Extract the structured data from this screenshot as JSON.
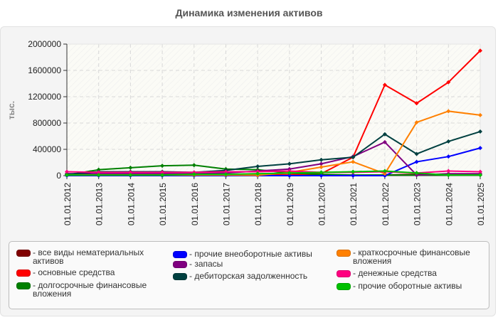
{
  "title": "Динамика изменения активов",
  "chart_data": {
    "type": "line",
    "title": "Динамика изменения активов",
    "xlabel": "",
    "ylabel": "тыс.",
    "ylim": [
      0,
      2000000
    ],
    "yticks": [
      "0",
      "400000",
      "800000",
      "1200000",
      "1600000",
      "2000000"
    ],
    "grid": true,
    "legend_position": "bottom",
    "categories": [
      "01.01.2012",
      "01.01.2013",
      "01.01.2014",
      "01.01.2015",
      "01.01.2016",
      "01.01.2017",
      "01.01.2018",
      "01.01.2019",
      "01.01.2020",
      "01.01.2021",
      "01.01.2022",
      "01.01.2023",
      "01.01.2024",
      "01.01.2025"
    ],
    "series": [
      {
        "name": "все виды нематериальных активов",
        "color": "#800000",
        "values": [
          5000,
          5000,
          5000,
          5000,
          5000,
          5000,
          5000,
          5000,
          5000,
          5000,
          10000,
          20000,
          15000,
          10000
        ]
      },
      {
        "name": "основные средства",
        "color": "#ff0000",
        "values": [
          20000,
          15000,
          15000,
          15000,
          15000,
          15000,
          15000,
          15000,
          30000,
          280000,
          1380000,
          1100000,
          1420000,
          1900000
        ]
      },
      {
        "name": "долгосрочные финансовые вложения",
        "color": "#008000",
        "values": [
          10000,
          90000,
          120000,
          150000,
          160000,
          100000,
          90000,
          40000,
          20000,
          10000,
          10000,
          10000,
          10000,
          10000
        ]
      },
      {
        "name": "прочие внеоборотные активы",
        "color": "#0000ff",
        "values": [
          0,
          0,
          0,
          0,
          0,
          0,
          0,
          0,
          0,
          0,
          0,
          210000,
          290000,
          420000
        ]
      },
      {
        "name": "запасы",
        "color": "#800080",
        "values": [
          30000,
          30000,
          30000,
          30000,
          30000,
          40000,
          70000,
          100000,
          180000,
          290000,
          510000,
          10000,
          30000,
          30000
        ]
      },
      {
        "name": "дебиторская задолженность",
        "color": "#004040",
        "values": [
          20000,
          60000,
          60000,
          60000,
          50000,
          80000,
          140000,
          180000,
          240000,
          280000,
          630000,
          330000,
          520000,
          670000
        ]
      },
      {
        "name": "краткосрочные финансовые вложения",
        "color": "#ff8000",
        "values": [
          10000,
          10000,
          10000,
          10000,
          10000,
          10000,
          5000,
          50000,
          130000,
          210000,
          30000,
          810000,
          980000,
          920000
        ]
      },
      {
        "name": "денежные средства",
        "color": "#ff0080",
        "values": [
          60000,
          50000,
          50000,
          50000,
          50000,
          60000,
          60000,
          70000,
          50000,
          50000,
          60000,
          40000,
          70000,
          60000
        ]
      },
      {
        "name": "прочие оборотные активы",
        "color": "#00c000",
        "values": [
          10000,
          10000,
          10000,
          10000,
          20000,
          20000,
          30000,
          40000,
          50000,
          60000,
          70000,
          40000,
          10000,
          10000
        ]
      }
    ]
  },
  "legend": {
    "items": [
      {
        "label": "- все виды нематериальных активов",
        "color": "#800000"
      },
      {
        "label": "- основные средства",
        "color": "#ff0000"
      },
      {
        "label": "- долгосрочные финансовые вложения",
        "color": "#008000"
      },
      {
        "label": "- прочие внеоборотные активы",
        "color": "#0000ff"
      },
      {
        "label": "- запасы",
        "color": "#800080"
      },
      {
        "label": "- дебиторская задолженность",
        "color": "#004040"
      },
      {
        "label": "- краткосрочные финансовые вложения",
        "color": "#ff8000"
      },
      {
        "label": "- денежные средства",
        "color": "#ff0080"
      },
      {
        "label": "- прочие оборотные активы",
        "color": "#00c000"
      }
    ]
  }
}
